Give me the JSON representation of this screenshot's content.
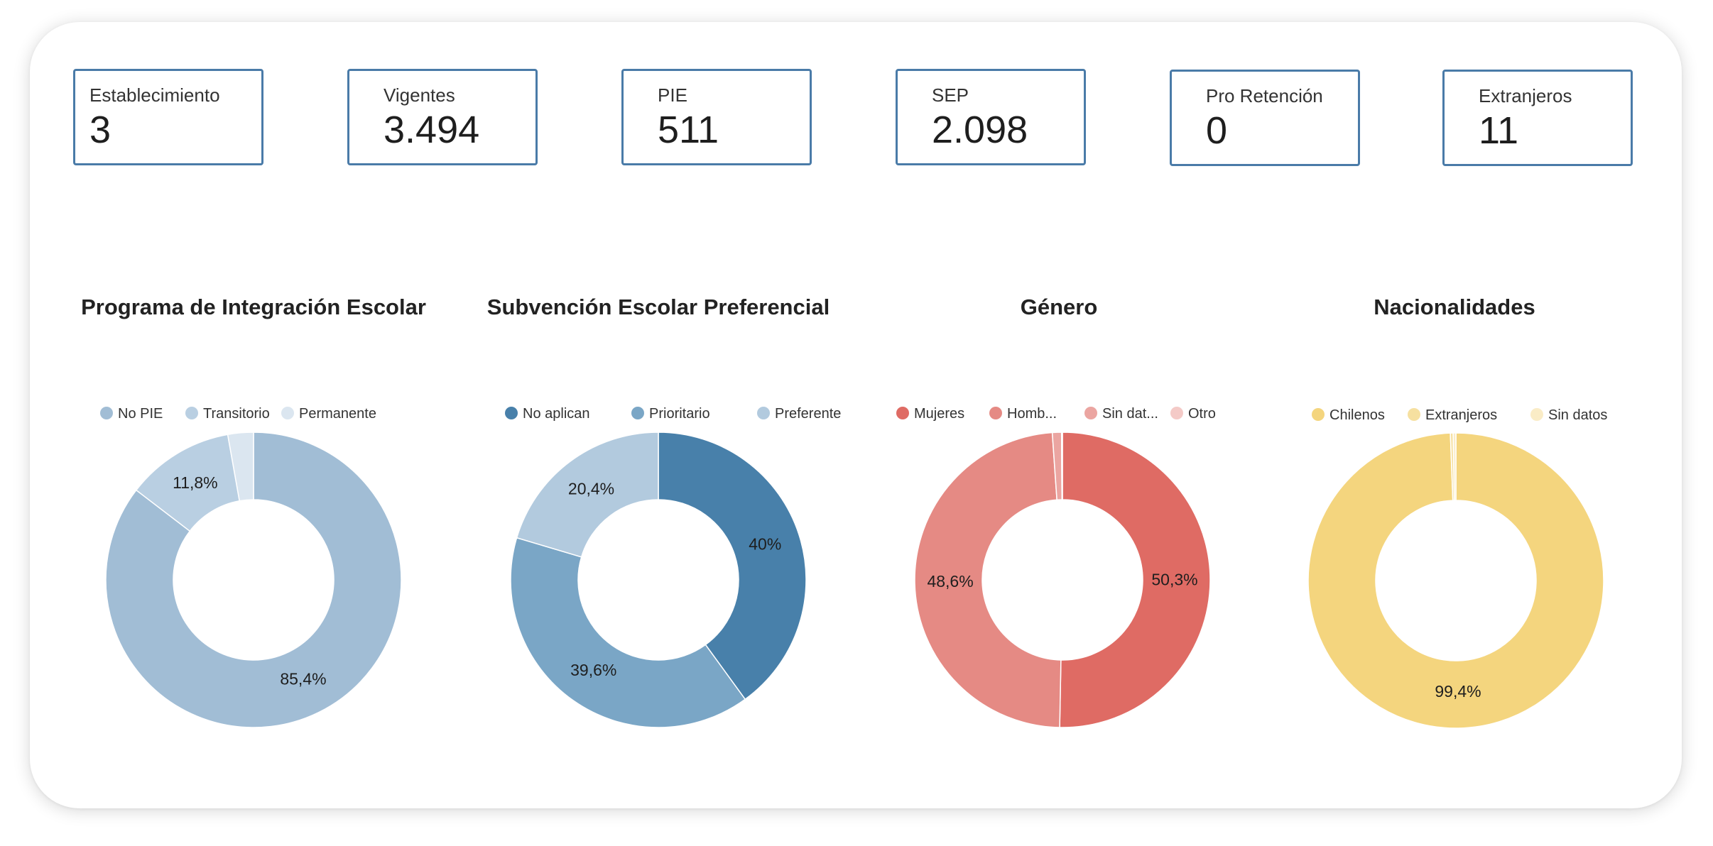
{
  "kpis": [
    {
      "label": "Establecimiento",
      "value": "3"
    },
    {
      "label": "Vigentes",
      "value": "3.494"
    },
    {
      "label": "PIE",
      "value": "511"
    },
    {
      "label": "SEP",
      "value": "2.098"
    },
    {
      "label": "Pro Retención",
      "value": "0"
    },
    {
      "label": "Extranjeros",
      "value": "11"
    }
  ],
  "chart_data": [
    {
      "type": "pie",
      "title": "Programa de Integración Escolar",
      "legend_position": "top",
      "slices": [
        {
          "name": "No PIE",
          "value": 85.4,
          "label": "85,4%",
          "color": "#a1bdd5"
        },
        {
          "name": "Transitorio",
          "value": 11.8,
          "label": "11,8%",
          "color": "#b9cfe2"
        },
        {
          "name": "Permanente",
          "value": 2.8,
          "label": "",
          "color": "#dbe6f0"
        }
      ]
    },
    {
      "type": "pie",
      "title": "Subvención Escolar Preferencial",
      "legend_position": "top",
      "slices": [
        {
          "name": "No aplican",
          "value": 40,
          "label": "40%",
          "color": "#4880aa"
        },
        {
          "name": "Prioritario",
          "value": 39.6,
          "label": "39,6%",
          "color": "#7aa6c6"
        },
        {
          "name": "Preferente",
          "value": 20.4,
          "label": "20,4%",
          "color": "#b2cade"
        }
      ]
    },
    {
      "type": "pie",
      "title": "Género",
      "legend_position": "top",
      "slices": [
        {
          "name": "Mujeres",
          "value": 50.3,
          "label": "50,3%",
          "color": "#df6b64"
        },
        {
          "name": "Homb...",
          "value": 48.6,
          "label": "48,6%",
          "color": "#e58a84"
        },
        {
          "name": "Sin dat...",
          "value": 1.0,
          "label": "",
          "color": "#eba5a1"
        },
        {
          "name": "Otro",
          "value": 0.1,
          "label": "",
          "color": "#f4cac7"
        }
      ]
    },
    {
      "type": "pie",
      "title": "Nacionalidades",
      "legend_position": "top",
      "slices": [
        {
          "name": "Chilenos",
          "value": 99.4,
          "label": "99,4%",
          "color": "#f4d57e"
        },
        {
          "name": "Extranjeros",
          "value": 0.3,
          "label": "",
          "color": "#f6e0a0"
        },
        {
          "name": "Sin datos",
          "value": 0.3,
          "label": "",
          "color": "#faecc6"
        }
      ]
    }
  ]
}
